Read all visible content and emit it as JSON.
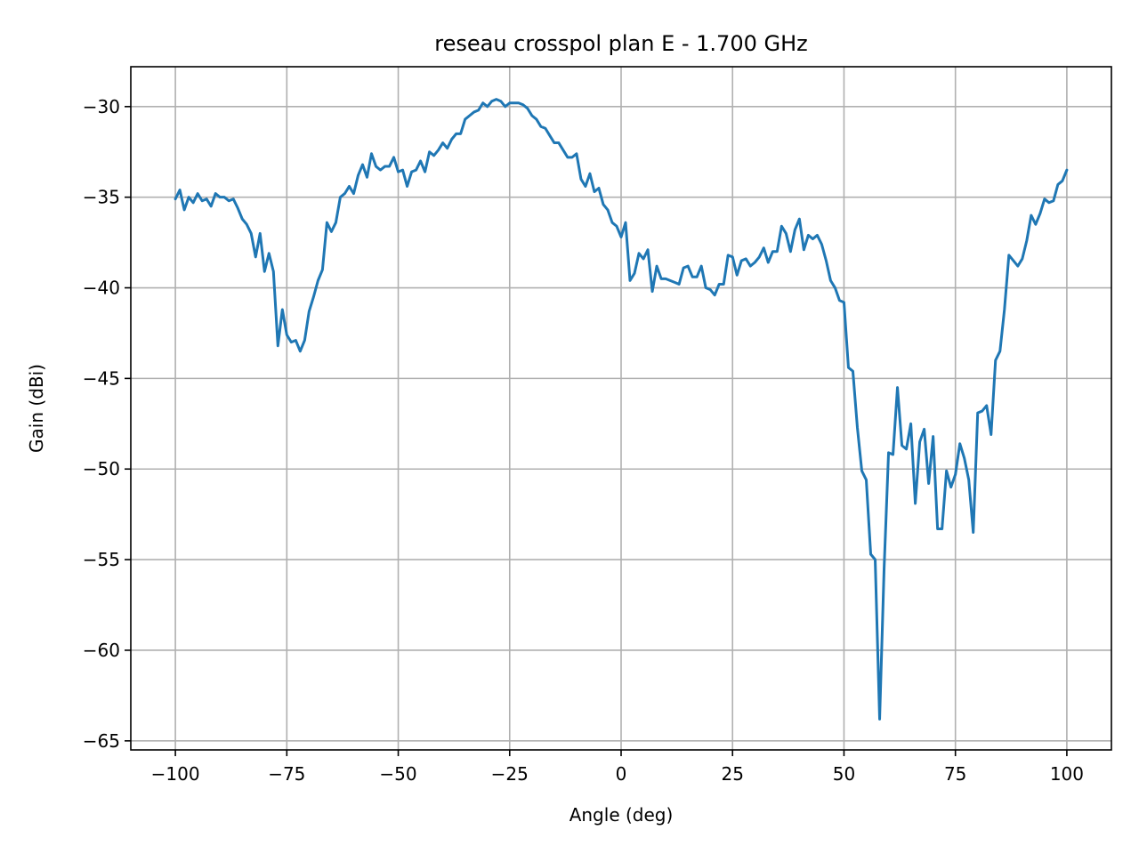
{
  "chart_data": {
    "type": "line",
    "title": "reseau crosspol plan E - 1.700 GHz",
    "xlabel": "Angle (deg)",
    "ylabel": "Gain (dBi)",
    "xlim": [
      -110,
      110
    ],
    "ylim": [
      -65.5,
      -27.8
    ],
    "xticks": [
      -100,
      -75,
      -50,
      -25,
      0,
      25,
      50,
      75,
      100
    ],
    "xtick_labels": [
      "−100",
      "−75",
      "−50",
      "−25",
      "0",
      "25",
      "50",
      "75",
      "100"
    ],
    "yticks": [
      -30,
      -35,
      -40,
      -45,
      -50,
      -55,
      -60,
      -65
    ],
    "ytick_labels": [
      "−30",
      "−35",
      "−40",
      "−45",
      "−50",
      "−55",
      "−60",
      "−65"
    ],
    "grid": true,
    "color": "#1f77b4",
    "series": [
      {
        "x": [
          -100,
          -99,
          -98,
          -97,
          -96,
          -95,
          -94,
          -93,
          -92,
          -91,
          -90,
          -89,
          -88,
          -87,
          -86,
          -85,
          -84,
          -83,
          -82,
          -81,
          -80,
          -79,
          -78,
          -77,
          -76,
          -75,
          -74,
          -73,
          -72,
          -71,
          -70,
          -69,
          -68,
          -67,
          -66,
          -65,
          -64,
          -63,
          -62,
          -61,
          -60,
          -59,
          -58,
          -57,
          -56,
          -55,
          -54,
          -53,
          -52,
          -51,
          -50,
          -49,
          -48,
          -47,
          -46,
          -45,
          -44,
          -43,
          -42,
          -41,
          -40,
          -39,
          -38,
          -37,
          -36,
          -35,
          -34,
          -33,
          -32,
          -31,
          -30,
          -29,
          -28,
          -27,
          -26,
          -25,
          -24,
          -23,
          -22,
          -21,
          -20,
          -19,
          -18,
          -17,
          -16,
          -15,
          -14,
          -13,
          -12,
          -11,
          -10,
          -9,
          -8,
          -7,
          -6,
          -5,
          -4,
          -3,
          -2,
          -1,
          0,
          1,
          2,
          3,
          4,
          5,
          6,
          7,
          8,
          9,
          10,
          11,
          12,
          13,
          14,
          15,
          16,
          17,
          18,
          19,
          20,
          21,
          22,
          23,
          24,
          25,
          26,
          27,
          28,
          29,
          30,
          31,
          32,
          33,
          34,
          35,
          36,
          37,
          38,
          39,
          40,
          41,
          42,
          43,
          44,
          45,
          46,
          47,
          48,
          49,
          50,
          51,
          52,
          53,
          54,
          55,
          56,
          57,
          58,
          59,
          60,
          61,
          62,
          63,
          64,
          65,
          66,
          67,
          68,
          69,
          70,
          71,
          72,
          73,
          74,
          75,
          76,
          77,
          78,
          79,
          80,
          81,
          82,
          83,
          84,
          85,
          86,
          87,
          88,
          89,
          90,
          91,
          92,
          93,
          94,
          95,
          96,
          97,
          98,
          99,
          100
        ],
        "y": [
          -35.1,
          -34.6,
          -35.7,
          -35.0,
          -35.3,
          -34.8,
          -35.2,
          -35.1,
          -35.5,
          -34.8,
          -35.0,
          -35.0,
          -35.2,
          -35.1,
          -35.6,
          -36.2,
          -36.5,
          -37.0,
          -38.3,
          -37.0,
          -39.1,
          -38.1,
          -39.1,
          -43.2,
          -41.2,
          -42.6,
          -43.0,
          -42.9,
          -43.5,
          -42.9,
          -41.3,
          -40.5,
          -39.6,
          -39.0,
          -36.4,
          -36.9,
          -36.4,
          -35.0,
          -34.8,
          -34.4,
          -34.8,
          -33.8,
          -33.2,
          -33.9,
          -32.6,
          -33.3,
          -33.5,
          -33.3,
          -33.3,
          -32.8,
          -33.6,
          -33.5,
          -34.4,
          -33.6,
          -33.5,
          -33.0,
          -33.6,
          -32.5,
          -32.7,
          -32.4,
          -32.0,
          -32.3,
          -31.8,
          -31.5,
          -31.5,
          -30.7,
          -30.5,
          -30.3,
          -30.2,
          -29.8,
          -30.0,
          -29.7,
          -29.6,
          -29.7,
          -30.0,
          -29.8,
          -29.8,
          -29.8,
          -29.9,
          -30.1,
          -30.5,
          -30.7,
          -31.1,
          -31.2,
          -31.6,
          -32.0,
          -32.0,
          -32.4,
          -32.8,
          -32.8,
          -32.6,
          -34.0,
          -34.4,
          -33.7,
          -34.7,
          -34.5,
          -35.4,
          -35.7,
          -36.4,
          -36.6,
          -37.2,
          -36.4,
          -39.6,
          -39.2,
          -38.1,
          -38.4,
          -37.9,
          -40.2,
          -38.8,
          -39.5,
          -39.5,
          -39.6,
          -39.7,
          -39.8,
          -38.9,
          -38.8,
          -39.4,
          -39.4,
          -38.8,
          -40.0,
          -40.1,
          -40.4,
          -39.8,
          -39.8,
          -38.2,
          -38.3,
          -39.3,
          -38.5,
          -38.4,
          -38.8,
          -38.6,
          -38.3,
          -37.8,
          -38.6,
          -38.0,
          -38.0,
          -36.6,
          -37.0,
          -38.0,
          -36.8,
          -36.2,
          -37.9,
          -37.1,
          -37.3,
          -37.1,
          -37.6,
          -38.5,
          -39.6,
          -40.0,
          -40.7,
          -40.8,
          -44.4,
          -44.6,
          -47.7,
          -50.1,
          -50.6,
          -54.7,
          -55.0,
          -63.8,
          -55.5,
          -49.1,
          -49.2,
          -45.5,
          -48.7,
          -48.9,
          -47.5,
          -51.9,
          -48.5,
          -47.8,
          -50.8,
          -48.2,
          -53.3,
          -53.3,
          -50.1,
          -51.0,
          -50.3,
          -48.6,
          -49.4,
          -50.6,
          -53.5,
          -46.9,
          -46.8,
          -46.5,
          -48.1,
          -44.0,
          -43.5,
          -41.2,
          -38.2,
          -38.5,
          -38.8,
          -38.4,
          -37.4,
          -36.0,
          -36.5,
          -35.9,
          -35.1,
          -35.3,
          -35.2,
          -34.3,
          -34.1,
          -33.5
        ]
      }
    ]
  }
}
